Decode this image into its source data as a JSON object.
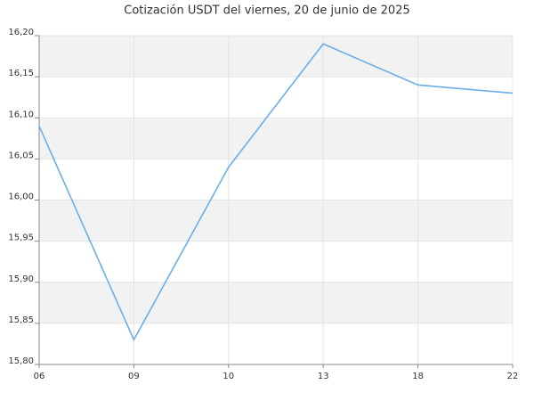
{
  "chart_data": {
    "type": "line",
    "title": "Cotización USDT del viernes, 20 de junio de 2025",
    "categories": [
      "06",
      "09",
      "10",
      "13",
      "18",
      "22"
    ],
    "series": [
      {
        "color": "#6aaeea",
        "values": [
          16.09,
          15.83,
          16.04,
          16.19,
          16.14,
          16.13
        ]
      }
    ],
    "ylim": [
      15.8,
      16.2
    ],
    "yticks": [
      {
        "value": 15.8,
        "label": "15,80"
      },
      {
        "value": 15.85,
        "label": "15,85"
      },
      {
        "value": 15.9,
        "label": "15,90"
      },
      {
        "value": 15.95,
        "label": "15,95"
      },
      {
        "value": 16.0,
        "label": "16,00"
      },
      {
        "value": 16.05,
        "label": "16,05"
      },
      {
        "value": 16.1,
        "label": "16,10"
      },
      {
        "value": 16.15,
        "label": "16,15"
      },
      {
        "value": 16.2,
        "label": "16,20"
      }
    ],
    "grid": true,
    "band_color": "#f2f2f2"
  }
}
